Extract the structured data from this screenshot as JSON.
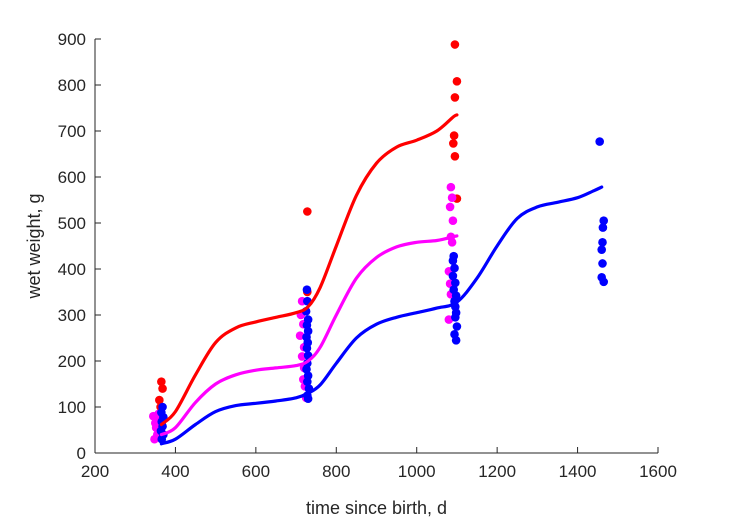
{
  "chart_data": {
    "type": "scatter",
    "xlabel": "time since birth, d",
    "ylabel": "wet weight, g",
    "xlim": [
      200,
      1600
    ],
    "ylim": [
      0,
      900
    ],
    "xticks": [
      200,
      400,
      600,
      800,
      1000,
      1200,
      1400,
      1600
    ],
    "yticks": [
      0,
      100,
      200,
      300,
      400,
      500,
      600,
      700,
      800,
      900
    ],
    "grid": false,
    "legend": "none",
    "series": [
      {
        "color": "#ff0000",
        "curve": [
          [
            365,
            62
          ],
          [
            400,
            90
          ],
          [
            450,
            170
          ],
          [
            500,
            240
          ],
          [
            550,
            272
          ],
          [
            600,
            285
          ],
          [
            650,
            295
          ],
          [
            700,
            305
          ],
          [
            730,
            318
          ],
          [
            760,
            360
          ],
          [
            800,
            450
          ],
          [
            850,
            560
          ],
          [
            900,
            630
          ],
          [
            950,
            665
          ],
          [
            1000,
            680
          ],
          [
            1050,
            700
          ],
          [
            1090,
            730
          ],
          [
            1100,
            735
          ]
        ],
        "points": [
          [
            365,
            155
          ],
          [
            368,
            140
          ],
          [
            360,
            115
          ],
          [
            363,
            100
          ],
          [
            362,
            85
          ],
          [
            366,
            75
          ],
          [
            728,
            525
          ],
          [
            728,
            350
          ],
          [
            1095,
            888
          ],
          [
            1100,
            808
          ],
          [
            1095,
            773
          ],
          [
            1093,
            690
          ],
          [
            1091,
            673
          ],
          [
            1095,
            645
          ],
          [
            1100,
            553
          ]
        ]
      },
      {
        "color": "#ff00ff",
        "curve": [
          [
            365,
            40
          ],
          [
            400,
            55
          ],
          [
            450,
            110
          ],
          [
            500,
            150
          ],
          [
            550,
            170
          ],
          [
            600,
            180
          ],
          [
            650,
            185
          ],
          [
            700,
            190
          ],
          [
            730,
            200
          ],
          [
            760,
            230
          ],
          [
            800,
            300
          ],
          [
            850,
            380
          ],
          [
            900,
            425
          ],
          [
            950,
            448
          ],
          [
            1000,
            458
          ],
          [
            1050,
            462
          ],
          [
            1090,
            470
          ],
          [
            1100,
            472
          ]
        ],
        "points": [
          [
            345,
            80
          ],
          [
            350,
            65
          ],
          [
            352,
            55
          ],
          [
            348,
            30
          ],
          [
            355,
            40
          ],
          [
            358,
            85
          ],
          [
            360,
            70
          ],
          [
            362,
            60
          ],
          [
            715,
            330
          ],
          [
            712,
            300
          ],
          [
            718,
            280
          ],
          [
            710,
            255
          ],
          [
            720,
            230
          ],
          [
            715,
            210
          ],
          [
            720,
            185
          ],
          [
            718,
            160
          ],
          [
            722,
            145
          ],
          [
            725,
            120
          ],
          [
            1085,
            578
          ],
          [
            1088,
            555
          ],
          [
            1083,
            535
          ],
          [
            1090,
            505
          ],
          [
            1085,
            470
          ],
          [
            1088,
            458
          ],
          [
            1080,
            395
          ],
          [
            1083,
            368
          ],
          [
            1085,
            345
          ],
          [
            1080,
            290
          ]
        ]
      },
      {
        "color": "#0000ff",
        "curve": [
          [
            365,
            20
          ],
          [
            400,
            30
          ],
          [
            450,
            62
          ],
          [
            500,
            90
          ],
          [
            550,
            103
          ],
          [
            600,
            108
          ],
          [
            650,
            113
          ],
          [
            700,
            120
          ],
          [
            730,
            130
          ],
          [
            760,
            148
          ],
          [
            800,
            195
          ],
          [
            850,
            250
          ],
          [
            900,
            280
          ],
          [
            950,
            295
          ],
          [
            1000,
            305
          ],
          [
            1050,
            315
          ],
          [
            1100,
            328
          ],
          [
            1150,
            380
          ],
          [
            1200,
            450
          ],
          [
            1250,
            510
          ],
          [
            1300,
            535
          ],
          [
            1350,
            545
          ],
          [
            1400,
            555
          ],
          [
            1440,
            570
          ],
          [
            1460,
            578
          ]
        ],
        "points": [
          [
            368,
            100
          ],
          [
            365,
            88
          ],
          [
            370,
            78
          ],
          [
            366,
            68
          ],
          [
            368,
            58
          ],
          [
            364,
            48
          ],
          [
            370,
            40
          ],
          [
            366,
            30
          ],
          [
            727,
            355
          ],
          [
            728,
            330
          ],
          [
            725,
            308
          ],
          [
            730,
            290
          ],
          [
            727,
            278
          ],
          [
            730,
            265
          ],
          [
            726,
            252
          ],
          [
            729,
            240
          ],
          [
            727,
            228
          ],
          [
            730,
            212
          ],
          [
            728,
            195
          ],
          [
            726,
            182
          ],
          [
            730,
            168
          ],
          [
            728,
            155
          ],
          [
            732,
            140
          ],
          [
            728,
            125
          ],
          [
            730,
            118
          ],
          [
            1092,
            428
          ],
          [
            1090,
            418
          ],
          [
            1094,
            402
          ],
          [
            1090,
            385
          ],
          [
            1096,
            370
          ],
          [
            1092,
            355
          ],
          [
            1098,
            342
          ],
          [
            1094,
            330
          ],
          [
            1096,
            318
          ],
          [
            1098,
            305
          ],
          [
            1096,
            295
          ],
          [
            1100,
            275
          ],
          [
            1094,
            258
          ],
          [
            1098,
            245
          ],
          [
            1455,
            677
          ],
          [
            1465,
            505
          ],
          [
            1463,
            490
          ],
          [
            1462,
            458
          ],
          [
            1460,
            442
          ],
          [
            1462,
            412
          ],
          [
            1460,
            382
          ],
          [
            1465,
            372
          ]
        ]
      }
    ]
  }
}
